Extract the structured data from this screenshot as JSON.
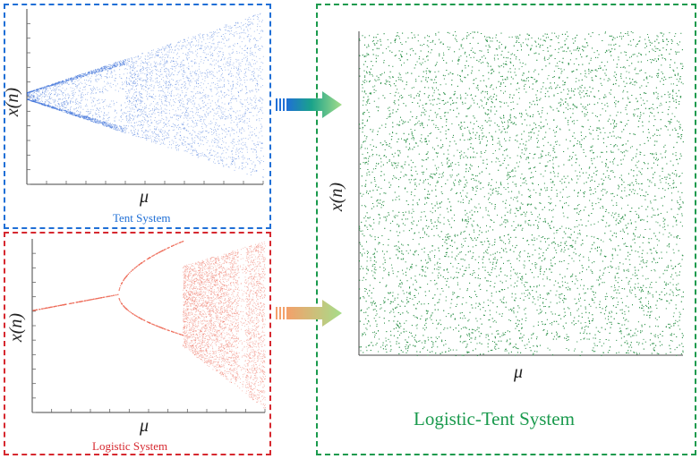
{
  "panels": {
    "tent": {
      "caption": "Tent System",
      "xlabel": "μ",
      "ylabel": "x(n)",
      "color": "#3b6fd8",
      "frame_color": "#1f6fd6"
    },
    "logistic": {
      "caption": "Logistic System",
      "xlabel": "μ",
      "ylabel": "x(n)",
      "color": "#ee6a58",
      "frame_color": "#d6282f"
    },
    "combined": {
      "caption": "Logistic-Tent System",
      "xlabel": "μ",
      "ylabel": "x(n)",
      "color": "#1f8a3e",
      "frame_color": "#1a9a4d"
    }
  },
  "arrows": [
    {
      "from": "tent",
      "to": "combined",
      "colors": [
        "#1f6fd6",
        "#1aa38a",
        "#a6dd8a"
      ]
    },
    {
      "from": "logistic",
      "to": "combined",
      "colors": [
        "#f4a06a",
        "#a6dd8a"
      ]
    }
  ]
}
